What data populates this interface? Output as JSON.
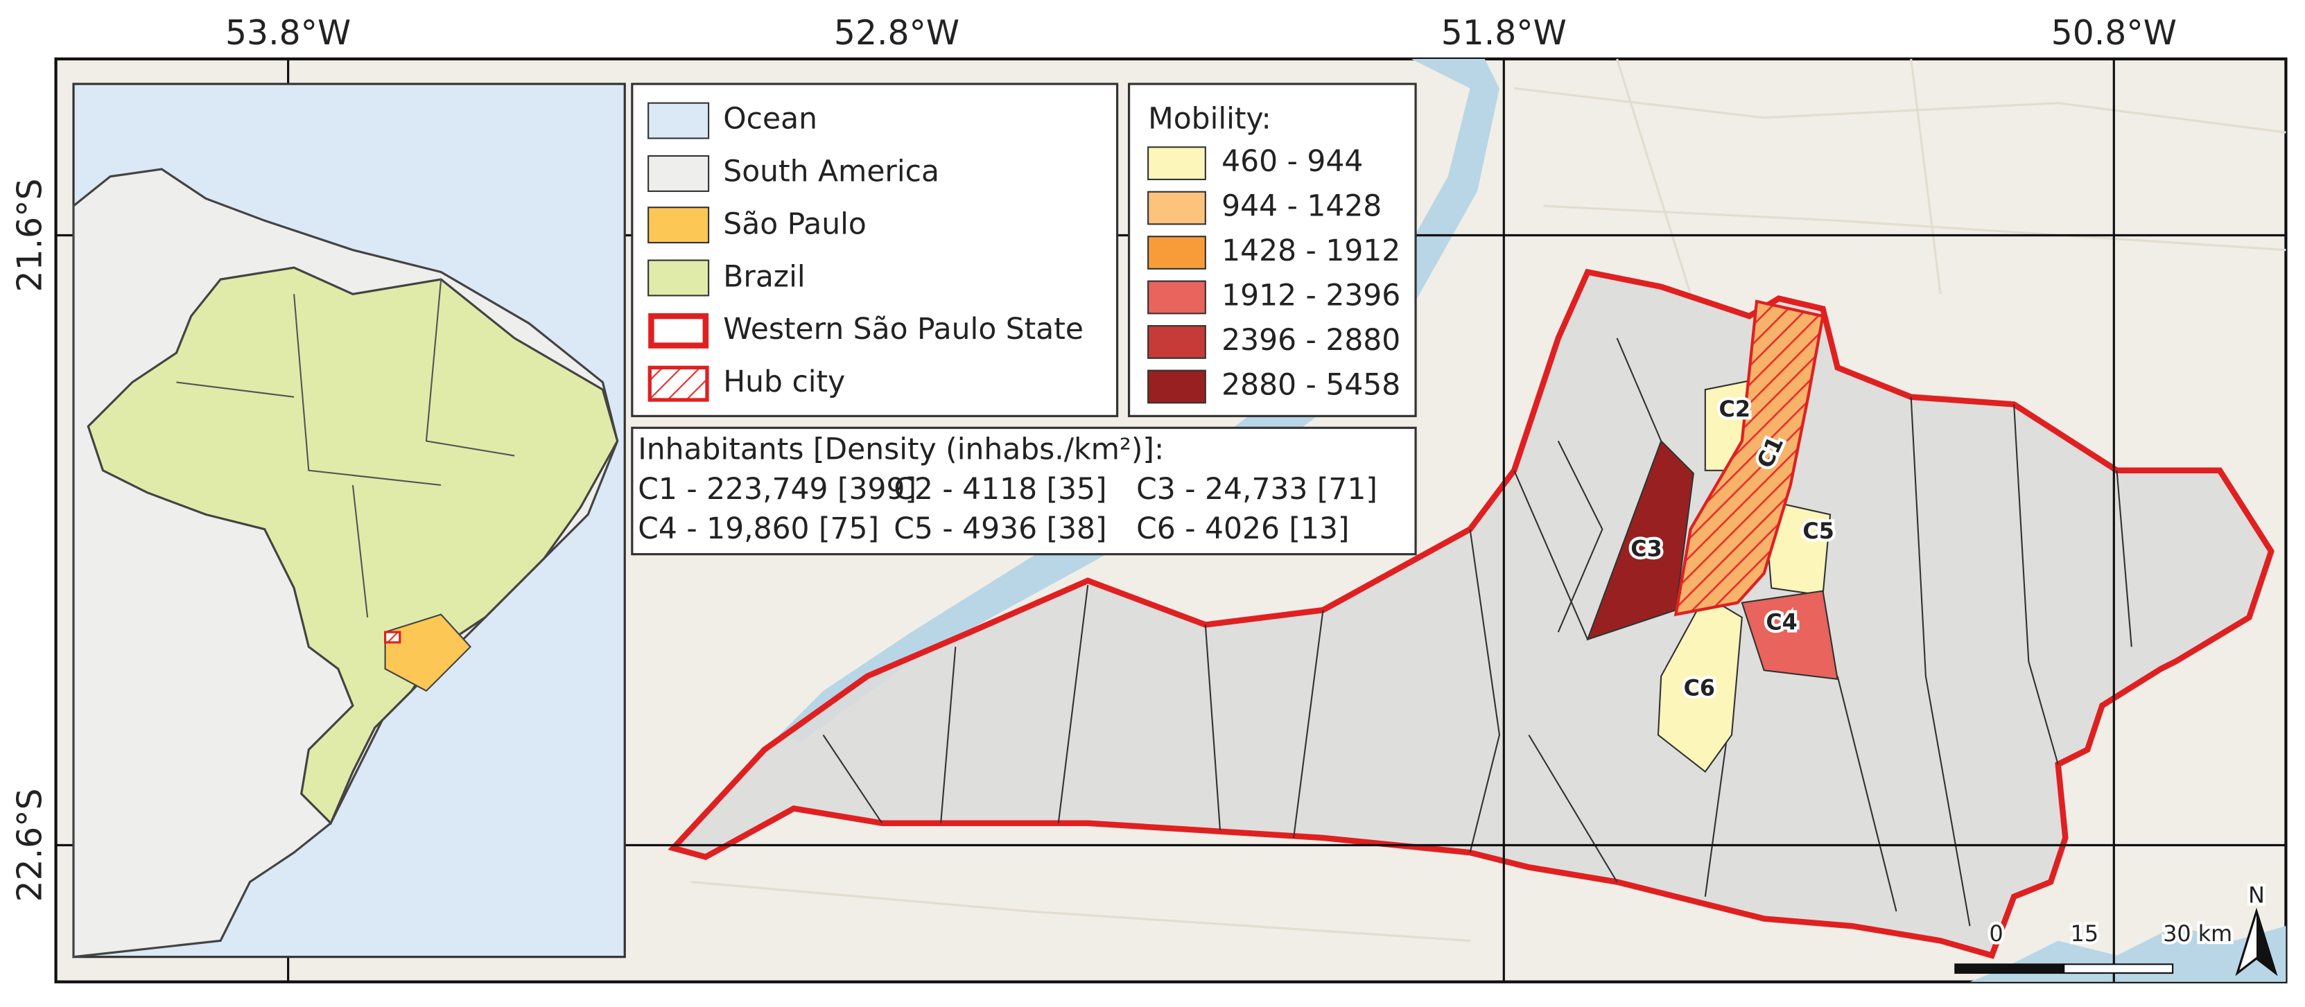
{
  "map": {
    "longitude_labels": [
      "53.8°W",
      "52.8°W",
      "51.8°W",
      "50.8°W"
    ],
    "latitude_labels": [
      "21.6°S",
      "22.6°S"
    ],
    "legend": [
      "Ocean",
      "South America",
      "São Paulo",
      "Brazil",
      "Western São Paulo State",
      "Hub city"
    ],
    "mobility": {
      "title": "Mobility:",
      "classes": [
        {
          "label": "460 - 944",
          "color": "#fdf6ba"
        },
        {
          "label": "944 - 1428",
          "color": "#fcc37c"
        },
        {
          "label": "1428 - 1912",
          "color": "#f89c3a"
        },
        {
          "label": "1912 - 2396",
          "color": "#e8645c"
        },
        {
          "label": "2396 - 2880",
          "color": "#c63a38"
        },
        {
          "label": "2880 - 5458",
          "color": "#992020"
        }
      ]
    },
    "inhabitants": {
      "title": "Inhabitants [Density (inhabs./km²)]:",
      "lines": [
        [
          "C1 - 223,749 [399]",
          "C2 - 4118 [35]",
          "C3 - 24,733 [71]"
        ],
        [
          "C4 - 19,860 [75]",
          "C5 - 4936 [38]",
          "C6 - 4026 [13]"
        ]
      ]
    },
    "clusters": [
      "C1",
      "C2",
      "C3",
      "C4",
      "C5",
      "C6"
    ],
    "scale_bar": [
      "0",
      "15",
      "30 km"
    ],
    "north": "N"
  }
}
